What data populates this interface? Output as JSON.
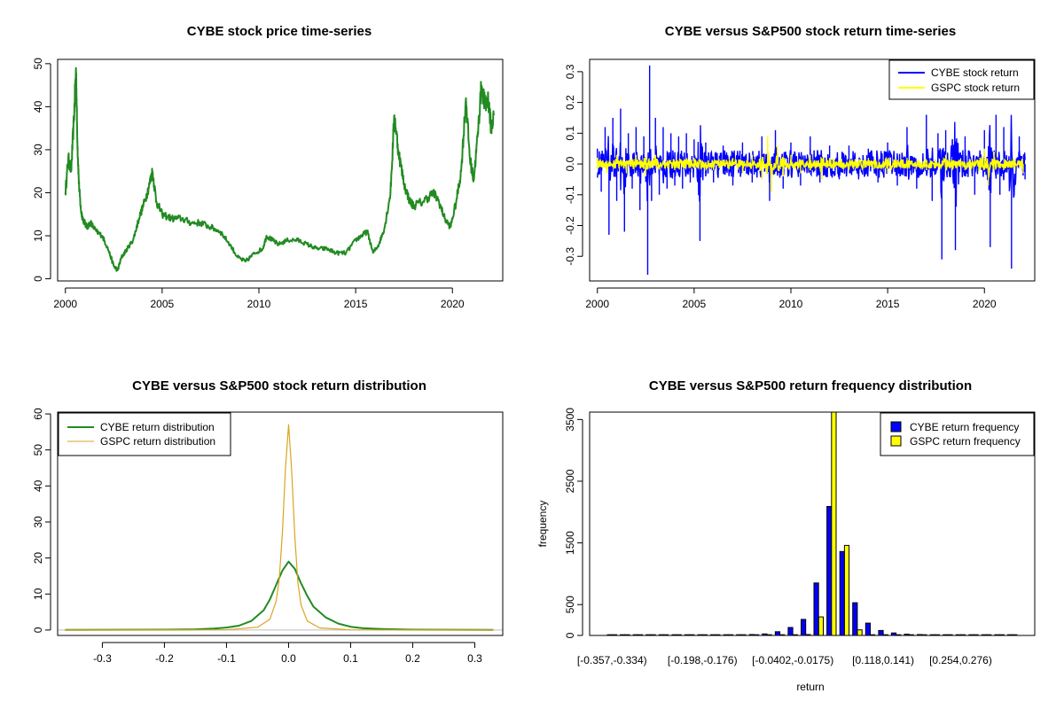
{
  "colors": {
    "cybe_price": "#228B22",
    "cybe_return": "#0000FF",
    "gspc_return": "#FFFF00",
    "cybe_density": "#228B22",
    "gspc_density": "#DAA520",
    "cybe_bar": "#0000FF",
    "gspc_bar": "#FFFF00"
  },
  "chart_data": [
    {
      "id": "price",
      "type": "line",
      "title": "CYBE stock price time-series",
      "xlabel": "",
      "ylabel": "",
      "xlim": [
        1999.6,
        2022.6
      ],
      "ylim": [
        -0.5,
        51
      ],
      "xticks": [
        2000,
        2005,
        2010,
        2015,
        2020
      ],
      "xtick_labels": [
        "2000",
        "2005",
        "2010",
        "2015",
        "2020"
      ],
      "yticks": [
        0,
        10,
        20,
        30,
        40,
        50
      ],
      "ytick_labels": [
        "0",
        "10",
        "20",
        "30",
        "40",
        "50"
      ],
      "grid": false,
      "series": [
        {
          "color": "#228B22",
          "x": [
            2000.0,
            2000.15,
            2000.3,
            2000.45,
            2000.55,
            2000.62,
            2000.7,
            2000.8,
            2000.9,
            2001.1,
            2001.3,
            2001.6,
            2001.9,
            2002.2,
            2002.5,
            2002.7,
            2002.9,
            2003.2,
            2003.5,
            2003.8,
            2004.1,
            2004.35,
            2004.5,
            2004.7,
            2005.0,
            2005.5,
            2006.0,
            2006.5,
            2007.0,
            2007.5,
            2008.0,
            2008.5,
            2008.9,
            2009.3,
            2009.8,
            2010.2,
            2010.4,
            2010.7,
            2011.0,
            2011.5,
            2012.0,
            2012.5,
            2013.0,
            2013.5,
            2014.0,
            2014.5,
            2015.0,
            2015.3,
            2015.6,
            2015.9,
            2016.2,
            2016.5,
            2016.8,
            2017.0,
            2017.2,
            2017.5,
            2017.8,
            2018.0,
            2018.5,
            2019.0,
            2019.3,
            2019.6,
            2019.9,
            2020.2,
            2020.45,
            2020.7,
            2020.9,
            2021.1,
            2021.3,
            2021.5,
            2021.7,
            2021.85,
            2022.0,
            2022.15
          ],
          "y": [
            20,
            28,
            25,
            38,
            49,
            32,
            22,
            16,
            14,
            12,
            13,
            11,
            10,
            7,
            3,
            2,
            5,
            7,
            9,
            14,
            18,
            22,
            25,
            18,
            15,
            14,
            14,
            13,
            13,
            12,
            11,
            8,
            5,
            4,
            6,
            7,
            10,
            9,
            8,
            9,
            9,
            8,
            7,
            7,
            6,
            6,
            9,
            10,
            11,
            6,
            8,
            12,
            20,
            38,
            30,
            22,
            18,
            17,
            18,
            20,
            18,
            14,
            12,
            18,
            25,
            42,
            28,
            23,
            33,
            45,
            40,
            42,
            35,
            38
          ]
        }
      ]
    },
    {
      "id": "returns",
      "type": "line",
      "title": "CYBE versus S&P500 stock return time-series",
      "xlabel": "",
      "ylabel": "",
      "xlim": [
        1999.6,
        2022.6
      ],
      "ylim": [
        -0.38,
        0.34
      ],
      "xticks": [
        2000,
        2005,
        2010,
        2015,
        2020
      ],
      "xtick_labels": [
        "2000",
        "2005",
        "2010",
        "2015",
        "2020"
      ],
      "yticks": [
        -0.3,
        -0.2,
        -0.1,
        0.0,
        0.1,
        0.2,
        0.3
      ],
      "ytick_labels": [
        "-0.3",
        "-0.2",
        "-0.1",
        "0.0",
        "0.1",
        "0.2",
        "0.3"
      ],
      "grid": false,
      "legend_position": "top-right",
      "series": [
        {
          "name": "CYBE stock return",
          "color": "#0000FF",
          "x": [
            2000.0,
            2000.2,
            2000.4,
            2000.6,
            2000.8,
            2001.0,
            2001.2,
            2001.4,
            2001.6,
            2001.8,
            2002.0,
            2002.2,
            2002.4,
            2002.6,
            2002.7,
            2002.8,
            2003.0,
            2003.2,
            2003.4,
            2003.6,
            2003.8,
            2004.0,
            2004.2,
            2004.4,
            2004.6,
            2004.8,
            2005.0,
            2005.3,
            2005.6,
            2006.0,
            2006.5,
            2007.0,
            2007.5,
            2008.0,
            2008.5,
            2008.9,
            2009.2,
            2009.6,
            2010.0,
            2010.5,
            2011.0,
            2011.5,
            2012.0,
            2012.5,
            2013.0,
            2013.5,
            2014.0,
            2014.5,
            2015.0,
            2015.5,
            2016.0,
            2016.5,
            2017.0,
            2017.3,
            2017.6,
            2017.8,
            2018.0,
            2018.5,
            2019.0,
            2019.5,
            2020.0,
            2020.3,
            2020.6,
            2020.8,
            2021.0,
            2021.4,
            2021.8,
            2022.1
          ],
          "y": [
            0.05,
            -0.09,
            0.12,
            -0.23,
            0.15,
            -0.12,
            0.18,
            -0.22,
            0.1,
            -0.08,
            0.12,
            -0.15,
            0.09,
            -0.36,
            0.32,
            -0.12,
            0.15,
            -0.1,
            0.12,
            -0.08,
            0.1,
            -0.07,
            0.09,
            -0.08,
            0.1,
            -0.06,
            0.08,
            -0.25,
            0.07,
            -0.06,
            0.06,
            -0.07,
            0.07,
            -0.06,
            0.09,
            -0.12,
            0.11,
            -0.08,
            0.07,
            -0.07,
            0.09,
            -0.06,
            0.06,
            -0.05,
            0.06,
            -0.05,
            0.05,
            -0.06,
            0.07,
            -0.07,
            0.12,
            -0.08,
            0.16,
            -0.12,
            0.1,
            -0.31,
            0.11,
            -0.28,
            0.09,
            -0.1,
            0.11,
            -0.27,
            0.16,
            -0.1,
            0.12,
            -0.34,
            0.09,
            -0.05
          ]
        },
        {
          "name": "GSPC stock return",
          "color": "#FFFF00",
          "x": [
            2000.0,
            2000.5,
            2001.0,
            2001.5,
            2002.0,
            2002.5,
            2003.0,
            2004.0,
            2005.0,
            2006.0,
            2007.0,
            2007.5,
            2008.0,
            2008.5,
            2008.8,
            2009.0,
            2009.3,
            2009.6,
            2010.0,
            2010.5,
            2011.0,
            2011.6,
            2012.0,
            2013.0,
            2014.0,
            2015.0,
            2016.0,
            2017.0,
            2018.0,
            2019.0,
            2020.0,
            2020.2,
            2020.5,
            2021.0,
            2021.5,
            2022.0
          ],
          "y": [
            0.02,
            -0.03,
            0.03,
            -0.03,
            0.03,
            -0.04,
            0.03,
            -0.02,
            0.02,
            -0.02,
            0.02,
            -0.03,
            0.03,
            -0.05,
            0.09,
            -0.09,
            0.06,
            -0.04,
            0.03,
            -0.03,
            0.03,
            -0.05,
            0.02,
            -0.02,
            0.02,
            -0.03,
            0.02,
            -0.02,
            0.03,
            -0.02,
            0.05,
            -0.07,
            0.04,
            -0.02,
            0.02,
            -0.03
          ]
        }
      ]
    },
    {
      "id": "density",
      "type": "line",
      "title": "CYBE versus S&P500 stock return distribution",
      "xlabel": "",
      "ylabel": "",
      "xlim": [
        -0.372,
        0.345
      ],
      "ylim": [
        -1.5,
        60.5
      ],
      "xticks": [
        -0.3,
        -0.2,
        -0.1,
        0.0,
        0.1,
        0.2,
        0.3
      ],
      "xtick_labels": [
        "-0.3",
        "-0.2",
        "-0.1",
        "0.0",
        "0.1",
        "0.2",
        "0.3"
      ],
      "yticks": [
        0,
        10,
        20,
        30,
        40,
        50,
        60
      ],
      "ytick_labels": [
        "0",
        "10",
        "20",
        "30",
        "40",
        "50",
        "60"
      ],
      "grid": false,
      "legend_position": "top-left",
      "series": [
        {
          "name": "CYBE return distribution",
          "color": "#228B22",
          "x": [
            -0.36,
            -0.2,
            -0.15,
            -0.12,
            -0.1,
            -0.08,
            -0.06,
            -0.04,
            -0.03,
            -0.02,
            -0.01,
            0.0,
            0.01,
            0.02,
            0.03,
            0.04,
            0.06,
            0.08,
            0.1,
            0.12,
            0.15,
            0.2,
            0.33
          ],
          "y": [
            0.05,
            0.1,
            0.2,
            0.4,
            0.7,
            1.2,
            2.5,
            5.5,
            8.5,
            12.5,
            16.5,
            19,
            17,
            13,
            9.5,
            6.5,
            3.5,
            1.8,
            0.9,
            0.5,
            0.3,
            0.1,
            0.05
          ]
        },
        {
          "name": "GSPC return distribution",
          "color": "#DAA520",
          "x": [
            -0.36,
            -0.1,
            -0.05,
            -0.03,
            -0.02,
            -0.015,
            -0.01,
            -0.005,
            0.0,
            0.005,
            0.01,
            0.015,
            0.02,
            0.03,
            0.05,
            0.1,
            0.33
          ],
          "y": [
            0,
            0.05,
            0.8,
            3,
            8,
            14,
            27,
            45,
            57,
            44,
            26,
            13,
            7,
            2.5,
            0.6,
            0.05,
            0
          ]
        }
      ]
    },
    {
      "id": "histogram",
      "type": "bar",
      "title": "CYBE versus S&P500 return frequency distribution",
      "xlabel": "return",
      "ylabel": "frequency",
      "ylim": [
        0,
        3620
      ],
      "yticks": [
        0,
        500,
        1500,
        2500,
        3500
      ],
      "ytick_labels": [
        "0",
        "500",
        "1500",
        "2500",
        "3500"
      ],
      "grid": false,
      "legend_position": "top-right",
      "category_labels": [
        {
          "index": 0,
          "text": "[-0.357,-0.334)"
        },
        {
          "index": 7,
          "text": "[-0.198,-0.176)"
        },
        {
          "index": 14,
          "text": "[-0.0402,-0.0175)"
        },
        {
          "index": 21,
          "text": "[0.118,0.141)"
        },
        {
          "index": 27,
          "text": "[0.254,0.276)"
        }
      ],
      "series": [
        {
          "name": "CYBE return frequency",
          "color": "#0000FF",
          "values": [
            2,
            1,
            1,
            2,
            1,
            2,
            3,
            4,
            5,
            6,
            10,
            15,
            25,
            60,
            130,
            260,
            850,
            2090,
            1360,
            530,
            200,
            80,
            40,
            20,
            15,
            8,
            5,
            4,
            3,
            2,
            2,
            2
          ]
        },
        {
          "name": "GSPC return frequency",
          "color": "#FFFF00",
          "values": [
            0,
            0,
            0,
            0,
            0,
            0,
            0,
            0,
            0,
            0,
            0,
            0,
            0,
            0,
            2,
            15,
            300,
            3620,
            1460,
            90,
            5,
            0,
            0,
            0,
            0,
            0,
            0,
            0,
            0,
            0,
            0,
            0
          ]
        }
      ]
    }
  ]
}
